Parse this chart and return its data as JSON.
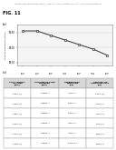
{
  "header_text": "Patent Application Publication    Sep. 27, 2012 / Sheet 11 of 11    US 2012/0234187 A1",
  "fig_label": "FIG. 11",
  "sub_label_a": "(a)",
  "sub_label_b": "(b)",
  "chart": {
    "x_values": [
      1000,
      1500,
      2000,
      2500,
      3000,
      3500,
      4000
    ],
    "y_values": [
      99.55,
      99.55,
      99.4,
      99.25,
      99.1,
      98.95,
      98.75
    ],
    "ylabel": "RATE OF PRESSURE (100%)",
    "xlim": [
      800,
      4200
    ],
    "ylim": [
      98.4,
      99.75
    ],
    "yticks": [
      98.5,
      99.0,
      99.5
    ],
    "ytick_labels": [
      "98.50",
      "99.00",
      "99.50"
    ],
    "xtick_speeds": [
      "1000\nRPM",
      "1500\nRPM",
      "2000\nRPM",
      "2500\nRPM",
      "3000\nRPM",
      "3500\nRPM",
      "4000\nRPM"
    ],
    "marker": "s",
    "line_color": "#333333",
    "marker_color": "#333333"
  },
  "table": {
    "col_headers": [
      "FULL LENGTH\nOF TUBE\n(mm)",
      "OUTSIDE OF TUBE\nDIAMETER\n(mm)",
      "DIFFERENTIAL\nPRESSURE\n(Pa)",
      "AMOUNT OF\nPRESSURE LOSS\n(Pa)"
    ],
    "rows": [
      [
        "1300 (A)",
        "30x31 A",
        "490.1 A",
        "1400 (A)"
      ],
      [
        "1325 (A)",
        "32x31 A",
        "530.1 A",
        "900 (A)"
      ],
      [
        "1350 (A)",
        "34x31 A",
        "530.1 A",
        "900 (A)"
      ],
      [
        "1375 (A)",
        "36x31 A",
        "480.1 A",
        "600 (A)"
      ],
      [
        "1400 (A)",
        "38x31 A",
        "420.1 A",
        "500 (A)"
      ],
      [
        "1425 (A)",
        "40x31 A",
        "520.11 A",
        "500 (A)"
      ]
    ]
  },
  "bg_color": "#ffffff",
  "text_color": "#000000",
  "header_color": "#666666"
}
